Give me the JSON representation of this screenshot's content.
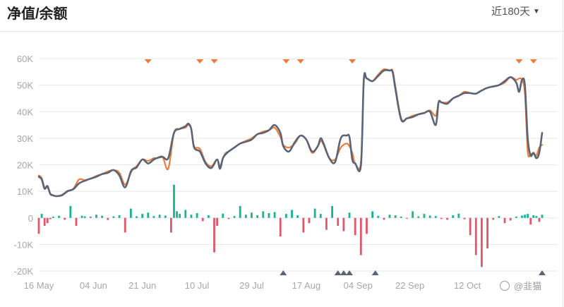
{
  "header": {
    "title": "净值/余额",
    "range_label": "近180天"
  },
  "icons": {
    "range_caret": "caret-down-icon",
    "watermark_icon": "weibo-icon"
  },
  "watermark": "@韭猫",
  "colors": {
    "equity_line": "#5a6478",
    "balance_line": "#f07a3a",
    "bar_positive": "#19b394",
    "bar_negative": "#e0576b",
    "grid": "#e8e8e8",
    "marker_top": "#f07a3a",
    "marker_bottom": "#5a6478"
  },
  "chart_data": {
    "type": "line",
    "title": "",
    "xlabel": "",
    "ylabel": "",
    "ylim": [
      -20000,
      60000
    ],
    "yticks": [
      60000,
      50000,
      40000,
      30000,
      20000,
      10000,
      0,
      -10000,
      -20000
    ],
    "ytick_labels": [
      "60K",
      "50K",
      "40K",
      "30K",
      "20K",
      "10K",
      "0",
      "-10K",
      "-20K"
    ],
    "xlim": [
      "2024-05-16",
      "2024-11-07"
    ],
    "xticks": [
      "2024-05-16",
      "2024-06-04",
      "2024-06-21",
      "2024-07-10",
      "2024-07-29",
      "2024-08-17",
      "2024-09-04",
      "2024-09-22",
      "2024-10-12"
    ],
    "xtick_labels": [
      "16 May",
      "04 Jun",
      "21 Jun",
      "10 Jul",
      "29 Jul",
      "17 Aug",
      "04 Sep",
      "22 Sep",
      "12 Oct"
    ],
    "grid": "horizontal",
    "series": [
      {
        "line": "equity",
        "x": [
          "2024-05-16",
          "2024-05-17",
          "2024-05-18",
          "2024-05-19",
          "2024-05-20",
          "2024-05-21",
          "2024-05-22",
          "2024-05-24",
          "2024-05-26",
          "2024-05-28",
          "2024-05-30",
          "2024-06-01",
          "2024-06-03",
          "2024-06-05",
          "2024-06-07",
          "2024-06-09",
          "2024-06-11",
          "2024-06-13",
          "2024-06-15",
          "2024-06-17",
          "2024-06-18",
          "2024-06-19",
          "2024-06-21",
          "2024-06-23",
          "2024-06-25",
          "2024-06-26",
          "2024-06-28",
          "2024-06-30",
          "2024-07-02",
          "2024-07-04",
          "2024-07-06",
          "2024-07-07",
          "2024-07-08",
          "2024-07-09",
          "2024-07-11",
          "2024-07-13",
          "2024-07-15",
          "2024-07-17",
          "2024-07-18",
          "2024-07-19",
          "2024-07-20",
          "2024-07-21",
          "2024-07-23",
          "2024-07-25",
          "2024-07-27",
          "2024-07-29",
          "2024-07-31",
          "2024-08-02",
          "2024-08-04",
          "2024-08-06",
          "2024-08-08",
          "2024-08-09",
          "2024-08-11",
          "2024-08-13",
          "2024-08-15",
          "2024-08-17",
          "2024-08-19",
          "2024-08-21",
          "2024-08-22",
          "2024-08-23",
          "2024-08-25",
          "2024-08-27",
          "2024-08-29",
          "2024-08-31",
          "2024-09-01",
          "2024-09-02",
          "2024-09-03",
          "2024-09-05",
          "2024-09-06",
          "2024-09-07",
          "2024-09-09",
          "2024-09-11",
          "2024-09-13",
          "2024-09-15",
          "2024-09-16",
          "2024-09-17",
          "2024-09-19",
          "2024-09-21",
          "2024-09-23",
          "2024-09-25",
          "2024-09-27",
          "2024-09-29",
          "2024-10-01",
          "2024-10-02",
          "2024-10-03",
          "2024-10-05",
          "2024-10-07",
          "2024-10-09",
          "2024-10-11",
          "2024-10-13",
          "2024-10-15",
          "2024-10-17",
          "2024-10-19",
          "2024-10-21",
          "2024-10-23",
          "2024-10-25",
          "2024-10-27",
          "2024-10-29",
          "2024-10-30",
          "2024-10-31",
          "2024-11-01",
          "2024-11-02",
          "2024-11-03",
          "2024-11-04",
          "2024-11-05",
          "2024-11-06",
          "2024-11-07"
        ],
        "y": [
          15500,
          14500,
          11000,
          12000,
          9000,
          8500,
          8200,
          8500,
          10000,
          10800,
          13000,
          14000,
          14800,
          15500,
          16500,
          17000,
          18000,
          16000,
          11500,
          17500,
          18500,
          19000,
          22000,
          20500,
          22000,
          22500,
          23000,
          22500,
          32000,
          33500,
          34500,
          35500,
          33500,
          26500,
          25000,
          20500,
          18800,
          22000,
          18500,
          22500,
          24000,
          25000,
          26500,
          28000,
          28700,
          29500,
          31500,
          32000,
          33000,
          35000,
          32000,
          27000,
          25000,
          28500,
          31000,
          29500,
          25000,
          27000,
          30000,
          28000,
          22500,
          21000,
          30000,
          31000,
          30500,
          22000,
          20500,
          19800,
          52000,
          52500,
          51500,
          53500,
          55500,
          55500,
          55000,
          48500,
          37000,
          37500,
          38000,
          39000,
          39500,
          40000,
          35000,
          43500,
          43500,
          43000,
          45000,
          46000,
          47000,
          47000,
          46800,
          48000,
          49000,
          49500,
          50000,
          51500,
          53000,
          51000,
          47500,
          52000,
          50000,
          30000,
          23500,
          24500,
          22500,
          24500,
          32000
        ]
      },
      {
        "line": "balance",
        "x": [
          "2024-05-16",
          "2024-05-17",
          "2024-05-18",
          "2024-05-19",
          "2024-05-20",
          "2024-05-21",
          "2024-05-22",
          "2024-05-24",
          "2024-05-26",
          "2024-05-28",
          "2024-05-30",
          "2024-06-01",
          "2024-06-03",
          "2024-06-05",
          "2024-06-07",
          "2024-06-09",
          "2024-06-11",
          "2024-06-13",
          "2024-06-15",
          "2024-06-17",
          "2024-06-18",
          "2024-06-19",
          "2024-06-21",
          "2024-06-23",
          "2024-06-25",
          "2024-06-26",
          "2024-06-28",
          "2024-06-30",
          "2024-07-02",
          "2024-07-04",
          "2024-07-06",
          "2024-07-07",
          "2024-07-08",
          "2024-07-09",
          "2024-07-11",
          "2024-07-13",
          "2024-07-15",
          "2024-07-17",
          "2024-07-18",
          "2024-07-19",
          "2024-07-20",
          "2024-07-21",
          "2024-07-23",
          "2024-07-25",
          "2024-07-27",
          "2024-07-29",
          "2024-07-31",
          "2024-08-02",
          "2024-08-04",
          "2024-08-06",
          "2024-08-08",
          "2024-08-09",
          "2024-08-11",
          "2024-08-13",
          "2024-08-15",
          "2024-08-17",
          "2024-08-19",
          "2024-08-21",
          "2024-08-22",
          "2024-08-23",
          "2024-08-25",
          "2024-08-27",
          "2024-08-29",
          "2024-08-31",
          "2024-09-01",
          "2024-09-02",
          "2024-09-03",
          "2024-09-05",
          "2024-09-06",
          "2024-09-07",
          "2024-09-09",
          "2024-09-11",
          "2024-09-13",
          "2024-09-15",
          "2024-09-16",
          "2024-09-17",
          "2024-09-19",
          "2024-09-21",
          "2024-09-23",
          "2024-09-25",
          "2024-09-27",
          "2024-09-29",
          "2024-10-01",
          "2024-10-02",
          "2024-10-03",
          "2024-10-05",
          "2024-10-07",
          "2024-10-09",
          "2024-10-11",
          "2024-10-13",
          "2024-10-15",
          "2024-10-17",
          "2024-10-19",
          "2024-10-21",
          "2024-10-23",
          "2024-10-25",
          "2024-10-27",
          "2024-10-29",
          "2024-10-30",
          "2024-10-31",
          "2024-11-01",
          "2024-11-02",
          "2024-11-03",
          "2024-11-04",
          "2024-11-05",
          "2024-11-06",
          "2024-11-07"
        ],
        "y": [
          16000,
          15000,
          11500,
          11500,
          9200,
          8500,
          8200,
          8700,
          10200,
          11000,
          14500,
          14200,
          14800,
          15800,
          16500,
          17500,
          18000,
          17000,
          12500,
          17000,
          18700,
          19500,
          22000,
          21500,
          22500,
          22500,
          23000,
          18500,
          32000,
          33500,
          34000,
          35000,
          33500,
          27000,
          26000,
          21000,
          19500,
          22000,
          19500,
          22500,
          24500,
          25000,
          26500,
          28000,
          29000,
          30000,
          31500,
          32500,
          33000,
          34000,
          30500,
          27500,
          26500,
          28000,
          31000,
          29500,
          24500,
          27000,
          29000,
          27500,
          22500,
          22000,
          26500,
          28000,
          27000,
          24500,
          20500,
          21000,
          51500,
          52500,
          51500,
          54000,
          56000,
          55500,
          55500,
          49500,
          37500,
          37500,
          38500,
          39000,
          39500,
          40500,
          38500,
          43500,
          43500,
          43500,
          45000,
          46000,
          47500,
          47000,
          46800,
          48000,
          49000,
          49500,
          50000,
          51000,
          53000,
          52000,
          52500,
          52000,
          47000,
          25000,
          24000,
          24500,
          23500,
          26500,
          27500
        ]
      }
    ],
    "bars": {
      "x": [
        "2024-05-16",
        "2024-05-17",
        "2024-05-18",
        "2024-05-19",
        "2024-05-20",
        "2024-05-21",
        "2024-05-23",
        "2024-05-25",
        "2024-05-27",
        "2024-05-29",
        "2024-05-31",
        "2024-06-01",
        "2024-06-03",
        "2024-06-05",
        "2024-06-07",
        "2024-06-09",
        "2024-06-11",
        "2024-06-13",
        "2024-06-15",
        "2024-06-17",
        "2024-06-19",
        "2024-06-21",
        "2024-06-23",
        "2024-06-25",
        "2024-06-27",
        "2024-06-29",
        "2024-07-01",
        "2024-07-02",
        "2024-07-03",
        "2024-07-04",
        "2024-07-06",
        "2024-07-08",
        "2024-07-10",
        "2024-07-12",
        "2024-07-14",
        "2024-07-16",
        "2024-07-17",
        "2024-07-19",
        "2024-07-21",
        "2024-07-23",
        "2024-07-25",
        "2024-07-27",
        "2024-07-29",
        "2024-07-31",
        "2024-08-02",
        "2024-08-04",
        "2024-08-06",
        "2024-08-08",
        "2024-08-10",
        "2024-08-12",
        "2024-08-14",
        "2024-08-16",
        "2024-08-18",
        "2024-08-20",
        "2024-08-22",
        "2024-08-24",
        "2024-08-26",
        "2024-08-28",
        "2024-08-30",
        "2024-09-01",
        "2024-09-03",
        "2024-09-05",
        "2024-09-07",
        "2024-09-09",
        "2024-09-11",
        "2024-09-13",
        "2024-09-15",
        "2024-09-17",
        "2024-09-19",
        "2024-09-21",
        "2024-09-23",
        "2024-09-25",
        "2024-09-27",
        "2024-09-29",
        "2024-10-01",
        "2024-10-03",
        "2024-10-05",
        "2024-10-07",
        "2024-10-09",
        "2024-10-11",
        "2024-10-13",
        "2024-10-15",
        "2024-10-17",
        "2024-10-19",
        "2024-10-21",
        "2024-10-23",
        "2024-10-25",
        "2024-10-27",
        "2024-10-29",
        "2024-10-31",
        "2024-11-01",
        "2024-11-02",
        "2024-11-03",
        "2024-11-04",
        "2024-11-05",
        "2024-11-06",
        "2024-11-07"
      ],
      "values": [
        -6000,
        1500,
        -3000,
        -2000,
        -500,
        500,
        800,
        -700,
        4500,
        -3000,
        800,
        600,
        500,
        1200,
        800,
        -800,
        600,
        1000,
        -5500,
        3500,
        600,
        1500,
        2000,
        700,
        1200,
        900,
        -5500,
        12500,
        2500,
        1500,
        3000,
        1200,
        1800,
        -1200,
        1000,
        -13000,
        -3000,
        1600,
        -400,
        700,
        4500,
        1200,
        2000,
        1000,
        2500,
        1800,
        2200,
        -7000,
        1500,
        3000,
        1000,
        -5500,
        -2000,
        3500,
        1500,
        -4500,
        4500,
        -3000,
        -5000,
        2000,
        -6500,
        -14000,
        -6000,
        2500,
        800,
        -700,
        1200,
        1000,
        500,
        -300,
        2500,
        600,
        1500,
        900,
        700,
        -400,
        -700,
        1000,
        1600,
        -500,
        -6500,
        -14000,
        -18500,
        -11500,
        -700,
        700,
        -2000,
        -1000,
        500,
        900,
        1200,
        1500,
        -2500,
        1000,
        700,
        -1500,
        1200
      ]
    },
    "top_markers": [
      "2024-06-23",
      "2024-07-11",
      "2024-07-16",
      "2024-08-10",
      "2024-08-15",
      "2024-09-02",
      "2024-10-30",
      "2024-11-04"
    ],
    "bottom_markers": [
      "2024-08-09",
      "2024-08-28",
      "2024-08-30",
      "2024-09-01",
      "2024-09-10",
      "2024-11-08"
    ]
  }
}
